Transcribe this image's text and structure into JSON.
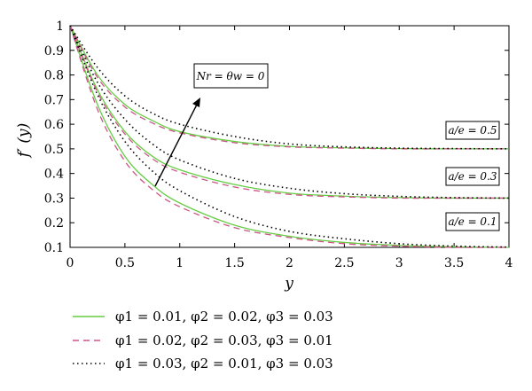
{
  "chart_data": {
    "type": "line",
    "xlabel": "y",
    "ylabel": "f′ (y)",
    "xlim": [
      0,
      4
    ],
    "ylim": [
      0.1,
      1
    ],
    "xticks": [
      0,
      0.5,
      1,
      1.5,
      2,
      2.5,
      3,
      3.5,
      4
    ],
    "xtick_labels": [
      "0",
      "0.5",
      "1",
      "1.5",
      "2",
      "2.5",
      "3",
      "3.5",
      "4"
    ],
    "yticks": [
      0.1,
      0.2,
      0.3,
      0.4,
      0.5,
      0.6,
      0.7,
      0.8,
      0.9,
      1
    ],
    "ytick_labels": [
      "0.1",
      "0.2",
      "0.3",
      "0.4",
      "0.5",
      "0.6",
      "0.7",
      "0.8",
      "0.9",
      "1"
    ],
    "grid": false,
    "legend_position": "below",
    "annotations": {
      "arrow_label": "Nr = θw = 0",
      "ratio_labels": [
        "a/e = 0.5",
        "a/e = 0.3",
        "a/e = 0.1"
      ]
    },
    "series": [
      {
        "name": "φ1 = 0.01, φ2 = 0.02, φ3 = 0.03",
        "style": "solid",
        "color": "#66cc44",
        "groups": [
          {
            "ratio": "a/e = 0.5",
            "x": [
              0,
              0.25,
              0.5,
              0.75,
              1,
              1.5,
              2,
              2.5,
              3,
              3.5,
              4
            ],
            "y": [
              1,
              0.8,
              0.68,
              0.615,
              0.57,
              0.53,
              0.51,
              0.504,
              0.501,
              0.5,
              0.5
            ]
          },
          {
            "ratio": "a/e = 0.3",
            "x": [
              0,
              0.25,
              0.5,
              0.75,
              1,
              1.5,
              2,
              2.5,
              3,
              3.5,
              4
            ],
            "y": [
              1,
              0.74,
              0.57,
              0.47,
              0.415,
              0.355,
              0.32,
              0.308,
              0.302,
              0.3,
              0.3
            ]
          },
          {
            "ratio": "a/e = 0.1",
            "x": [
              0,
              0.25,
              0.5,
              0.75,
              1,
              1.5,
              2,
              2.5,
              3,
              3.5,
              4
            ],
            "y": [
              1,
              0.68,
              0.47,
              0.355,
              0.28,
              0.19,
              0.145,
              0.12,
              0.108,
              0.102,
              0.1
            ]
          }
        ]
      },
      {
        "name": "φ1 = 0.02, φ2 = 0.03, φ3 = 0.01",
        "style": "dashed",
        "color": "#cc5588",
        "groups": [
          {
            "ratio": "a/e = 0.5",
            "x": [
              0,
              0.25,
              0.5,
              0.75,
              1,
              1.5,
              2,
              2.5,
              3,
              3.5,
              4
            ],
            "y": [
              1,
              0.79,
              0.67,
              0.605,
              0.565,
              0.525,
              0.508,
              0.503,
              0.5,
              0.5,
              0.5
            ]
          },
          {
            "ratio": "a/e = 0.3",
            "x": [
              0,
              0.25,
              0.5,
              0.75,
              1,
              1.5,
              2,
              2.5,
              3,
              3.5,
              4
            ],
            "y": [
              1,
              0.73,
              0.56,
              0.46,
              0.405,
              0.345,
              0.315,
              0.305,
              0.3,
              0.3,
              0.3
            ]
          },
          {
            "ratio": "a/e = 0.1",
            "x": [
              0,
              0.25,
              0.5,
              0.75,
              1,
              1.5,
              2,
              2.5,
              3,
              3.5,
              4
            ],
            "y": [
              1,
              0.66,
              0.45,
              0.335,
              0.265,
              0.18,
              0.14,
              0.115,
              0.105,
              0.1,
              0.1
            ]
          }
        ]
      },
      {
        "name": "φ1 = 0.03, φ2 = 0.01, φ3 = 0.03",
        "style": "dotted",
        "color": "#000000",
        "groups": [
          {
            "ratio": "a/e = 0.5",
            "x": [
              0,
              0.25,
              0.5,
              0.75,
              1,
              1.5,
              2,
              2.5,
              3,
              3.5,
              4
            ],
            "y": [
              1,
              0.83,
              0.715,
              0.645,
              0.6,
              0.55,
              0.52,
              0.508,
              0.503,
              0.501,
              0.5
            ]
          },
          {
            "ratio": "a/e = 0.3",
            "x": [
              0,
              0.25,
              0.5,
              0.75,
              1,
              1.5,
              2,
              2.5,
              3,
              3.5,
              4
            ],
            "y": [
              1,
              0.77,
              0.62,
              0.52,
              0.455,
              0.38,
              0.34,
              0.318,
              0.307,
              0.302,
              0.3
            ]
          },
          {
            "ratio": "a/e = 0.1",
            "x": [
              0,
              0.25,
              0.5,
              0.75,
              1,
              1.5,
              2,
              2.5,
              3,
              3.5,
              4
            ],
            "y": [
              1,
              0.72,
              0.53,
              0.41,
              0.33,
              0.225,
              0.165,
              0.135,
              0.115,
              0.105,
              0.101
            ]
          }
        ]
      }
    ]
  }
}
